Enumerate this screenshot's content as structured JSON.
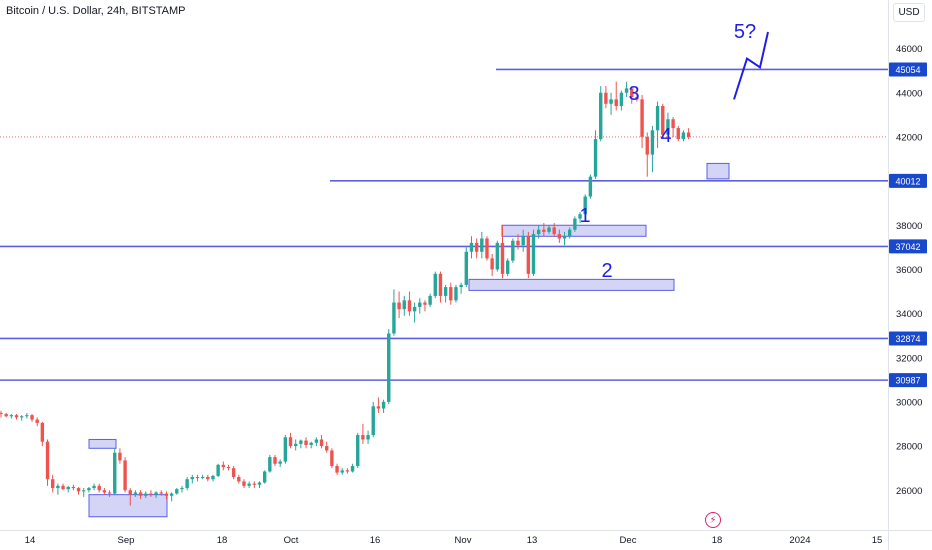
{
  "header": {
    "title": "Bitcoin / U.S. Dollar, 24h, BITSTAMP"
  },
  "price_scale": {
    "currency_button": "USD"
  },
  "events": {
    "icon": "lightning-icon"
  },
  "colors": {
    "up": "#26a69a",
    "down": "#ef5350",
    "level_line": "#5b5fe6",
    "wave_label": "#1e1ee8",
    "zone_fill": "#c9c9f5",
    "zone_border": "#5b5fe6"
  },
  "chart_data": {
    "type": "candlestick",
    "title": "Bitcoin / U.S. Dollar, 24h, BITSTAMP",
    "ylim": [
      24200,
      48200
    ],
    "y_ticks": [
      26000,
      28000,
      30000,
      32000,
      34000,
      36000,
      38000,
      40000,
      42000,
      44000,
      46000
    ],
    "x_ticks": [
      "14",
      "Sep",
      "18",
      "Oct",
      "16",
      "Nov",
      "13",
      "Dec",
      "18",
      "2024",
      "15"
    ],
    "last_price": 42000,
    "grid": false,
    "horizontal_levels": [
      {
        "label": "45054",
        "value": 45054
      },
      {
        "label": "40012",
        "value": 40012
      },
      {
        "label": "37042",
        "value": 37042
      },
      {
        "label": "32874",
        "value": 32874
      },
      {
        "label": "30987",
        "value": 30987
      }
    ],
    "zones": [
      {
        "y_top": 28300,
        "y_bottom": 27900
      },
      {
        "y_top": 25800,
        "y_bottom": 24800
      },
      {
        "y_top": 38000,
        "y_bottom": 37500
      },
      {
        "y_top": 35550,
        "y_bottom": 35050
      },
      {
        "y_top": 40800,
        "y_bottom": 40100
      }
    ],
    "wave_labels": [
      "1",
      "2",
      "3",
      "4",
      "5?"
    ],
    "projection": [
      {
        "date": "Dec 23",
        "price": 43700
      },
      {
        "date": "Dec 25",
        "price": 45550
      },
      {
        "date": "Dec 27",
        "price": 45150
      },
      {
        "date": "Dec 29",
        "price": 46750
      }
    ],
    "candles_ohlc": [
      [
        29500,
        29600,
        29300,
        29450
      ],
      [
        29450,
        29500,
        29300,
        29350
      ],
      [
        29350,
        29450,
        29250,
        29400
      ],
      [
        29400,
        29450,
        29200,
        29300
      ],
      [
        29300,
        29400,
        29150,
        29350
      ],
      [
        29350,
        29500,
        29250,
        29400
      ],
      [
        29400,
        29450,
        29100,
        29200
      ],
      [
        29200,
        29300,
        28900,
        29050
      ],
      [
        29050,
        29100,
        28000,
        28200
      ],
      [
        28200,
        28300,
        26200,
        26500
      ],
      [
        26500,
        26700,
        25900,
        26100
      ],
      [
        26100,
        26300,
        25800,
        26200
      ],
      [
        26200,
        26300,
        26000,
        26050
      ],
      [
        26050,
        26200,
        25900,
        26150
      ],
      [
        26150,
        26250,
        26000,
        26100
      ],
      [
        26100,
        26150,
        25800,
        25950
      ],
      [
        25950,
        26100,
        25700,
        26000
      ],
      [
        26000,
        26150,
        25900,
        26100
      ],
      [
        26100,
        26300,
        26000,
        26200
      ],
      [
        26200,
        26300,
        25900,
        26000
      ],
      [
        26000,
        26100,
        25800,
        25900
      ],
      [
        25900,
        26000,
        25700,
        25850
      ],
      [
        25850,
        27900,
        25800,
        27700
      ],
      [
        27700,
        27900,
        27200,
        27350
      ],
      [
        27350,
        27500,
        25900,
        26000
      ],
      [
        26000,
        26100,
        25300,
        25800
      ],
      [
        25800,
        26000,
        25700,
        25900
      ],
      [
        25900,
        26000,
        25600,
        25750
      ],
      [
        25750,
        25950,
        25650,
        25850
      ],
      [
        25850,
        26000,
        25700,
        25800
      ],
      [
        25800,
        25950,
        25650,
        25900
      ],
      [
        25900,
        26000,
        25750,
        25850
      ],
      [
        25850,
        25950,
        25600,
        25750
      ],
      [
        25750,
        25900,
        25500,
        25850
      ],
      [
        25850,
        26100,
        25800,
        26050
      ],
      [
        26050,
        26200,
        25900,
        26100
      ],
      [
        26100,
        26600,
        26000,
        26500
      ],
      [
        26500,
        26700,
        26300,
        26600
      ],
      [
        26600,
        26700,
        26400,
        26550
      ],
      [
        26550,
        26700,
        26500,
        26600
      ],
      [
        26600,
        26700,
        26400,
        26500
      ],
      [
        26500,
        26700,
        26400,
        26650
      ],
      [
        26650,
        27200,
        26600,
        27150
      ],
      [
        27150,
        27300,
        26900,
        27050
      ],
      [
        27050,
        27150,
        26900,
        27000
      ],
      [
        27000,
        27100,
        26500,
        26600
      ],
      [
        26600,
        26700,
        26300,
        26400
      ],
      [
        26400,
        26500,
        26100,
        26200
      ],
      [
        26200,
        26400,
        26100,
        26300
      ],
      [
        26300,
        26400,
        26100,
        26250
      ],
      [
        26250,
        26400,
        26100,
        26350
      ],
      [
        26350,
        26900,
        26300,
        26850
      ],
      [
        26850,
        27600,
        26800,
        27500
      ],
      [
        27500,
        27600,
        27100,
        27200
      ],
      [
        27200,
        27400,
        27050,
        27300
      ],
      [
        27300,
        28500,
        27200,
        28400
      ],
      [
        28400,
        28600,
        27900,
        28000
      ],
      [
        28000,
        28300,
        27800,
        28100
      ],
      [
        28100,
        28300,
        27900,
        28250
      ],
      [
        28250,
        28400,
        27900,
        28050
      ],
      [
        28050,
        28200,
        27900,
        28150
      ],
      [
        28150,
        28400,
        28000,
        28300
      ],
      [
        28300,
        28500,
        27900,
        28000
      ],
      [
        28000,
        28200,
        27700,
        27800
      ],
      [
        27800,
        27900,
        27000,
        27100
      ],
      [
        27100,
        27200,
        26700,
        26800
      ],
      [
        26800,
        27000,
        26700,
        26900
      ],
      [
        26900,
        27000,
        26750,
        26850
      ],
      [
        26850,
        27200,
        26800,
        27100
      ],
      [
        27100,
        28600,
        27000,
        28500
      ],
      [
        28500,
        29000,
        28100,
        28300
      ],
      [
        28300,
        28700,
        28100,
        28500
      ],
      [
        28500,
        30000,
        28400,
        29800
      ],
      [
        29800,
        30200,
        29500,
        29700
      ],
      [
        29700,
        30100,
        29500,
        30000
      ],
      [
        30000,
        33300,
        29900,
        33100
      ],
      [
        33100,
        35100,
        33000,
        34500
      ],
      [
        34500,
        35000,
        33800,
        34200
      ],
      [
        34200,
        34800,
        33900,
        34600
      ],
      [
        34600,
        35000,
        33900,
        34100
      ],
      [
        34100,
        34500,
        33600,
        34300
      ],
      [
        34300,
        34700,
        34000,
        34500
      ],
      [
        34500,
        34600,
        34100,
        34400
      ],
      [
        34400,
        34900,
        34300,
        34800
      ],
      [
        34800,
        35900,
        34700,
        35800
      ],
      [
        35800,
        35900,
        34500,
        34800
      ],
      [
        34800,
        35300,
        34500,
        35200
      ],
      [
        35200,
        35400,
        34400,
        34600
      ],
      [
        34600,
        35300,
        34500,
        35200
      ],
      [
        35200,
        35400,
        34900,
        35300
      ],
      [
        35300,
        37000,
        35200,
        36800
      ],
      [
        36800,
        37500,
        36500,
        37200
      ],
      [
        37200,
        37400,
        36500,
        36800
      ],
      [
        36800,
        37700,
        36500,
        37400
      ],
      [
        37400,
        37500,
        36400,
        36500
      ],
      [
        36500,
        36700,
        35700,
        36000
      ],
      [
        36000,
        37300,
        35900,
        37200
      ],
      [
        37200,
        38000,
        35600,
        35800
      ],
      [
        35800,
        36500,
        35700,
        36400
      ],
      [
        36400,
        37400,
        36300,
        37300
      ],
      [
        37300,
        37600,
        36900,
        37100
      ],
      [
        37100,
        37800,
        36800,
        37500
      ],
      [
        37500,
        37700,
        35600,
        35800
      ],
      [
        35800,
        37800,
        35700,
        37600
      ],
      [
        37600,
        38000,
        37400,
        37800
      ],
      [
        37800,
        38100,
        37500,
        37700
      ],
      [
        37700,
        38000,
        37600,
        37900
      ],
      [
        37900,
        38100,
        37500,
        37600
      ],
      [
        37600,
        37800,
        37200,
        37400
      ],
      [
        37400,
        37700,
        37100,
        37500
      ],
      [
        37500,
        37900,
        37400,
        37800
      ],
      [
        37800,
        38400,
        37700,
        38300
      ],
      [
        38300,
        38600,
        38100,
        38500
      ],
      [
        38500,
        39400,
        38400,
        39300
      ],
      [
        39300,
        40300,
        39200,
        40200
      ],
      [
        40200,
        42300,
        40100,
        41900
      ],
      [
        41900,
        44300,
        41800,
        44000
      ],
      [
        44000,
        44300,
        43300,
        43500
      ],
      [
        43500,
        44000,
        43000,
        43700
      ],
      [
        43700,
        44500,
        43200,
        43400
      ],
      [
        43400,
        44100,
        43200,
        44000
      ],
      [
        44000,
        44500,
        43800,
        44200
      ],
      [
        44200,
        44300,
        43500,
        43800
      ],
      [
        43800,
        44200,
        43600,
        43700
      ],
      [
        43700,
        43900,
        41500,
        42000
      ],
      [
        42000,
        42200,
        40200,
        41200
      ],
      [
        41200,
        42500,
        40400,
        42300
      ],
      [
        42300,
        43600,
        41500,
        43400
      ],
      [
        43400,
        43500,
        41900,
        42100
      ],
      [
        42100,
        43100,
        42000,
        42800
      ],
      [
        42800,
        42900,
        42000,
        42400
      ],
      [
        42400,
        42500,
        41800,
        41900
      ],
      [
        41900,
        42300,
        41800,
        42200
      ],
      [
        42200,
        42400,
        41900,
        42000
      ]
    ]
  }
}
